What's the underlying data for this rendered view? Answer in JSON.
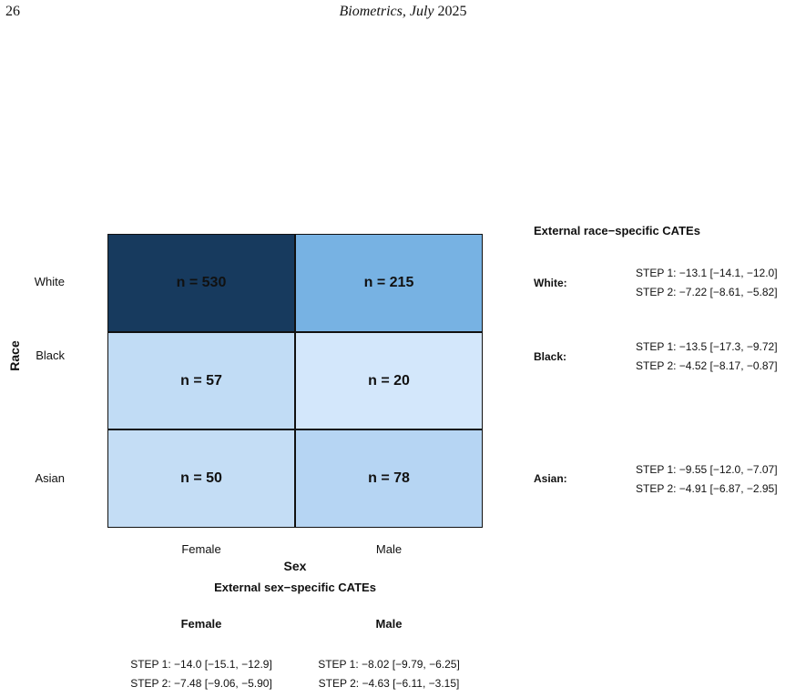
{
  "header": {
    "page_number": "26",
    "journal": "Biometrics, July",
    "year": "2025"
  },
  "chart_data": {
    "type": "heatmap",
    "ylabel": "Race",
    "xlabel": "Sex",
    "rows": [
      "White",
      "Black",
      "Asian"
    ],
    "columns": [
      "Female",
      "Male"
    ],
    "counts": [
      [
        530,
        215
      ],
      [
        57,
        20
      ],
      [
        50,
        78
      ]
    ],
    "cell_labels": [
      [
        "n = 530",
        "n = 215"
      ],
      [
        "n = 57",
        "n = 20"
      ],
      [
        "n = 50",
        "n = 78"
      ]
    ],
    "cell_colors": [
      [
        "#173a5e",
        "#77b2e3"
      ],
      [
        "#c1dcf5",
        "#d3e7fb"
      ],
      [
        "#c4ddf5",
        "#b6d5f3"
      ]
    ]
  },
  "sex_cates": {
    "title": "External sex−specific CATEs",
    "groups": [
      {
        "label": "Female",
        "step1": "STEP 1: −14.0 [−15.1, −12.9]",
        "step2": "STEP 2: −7.48 [−9.06, −5.90]"
      },
      {
        "label": "Male",
        "step1": "STEP 1: −8.02 [−9.79, −6.25]",
        "step2": "STEP 2: −4.63 [−6.11, −3.15]"
      }
    ]
  },
  "race_cates": {
    "title": "External race−specific CATEs",
    "groups": [
      {
        "label": "White:",
        "step1": "STEP 1: −13.1 [−14.1, −12.0]",
        "step2": "STEP 2: −7.22 [−8.61, −5.82]"
      },
      {
        "label": "Black:",
        "step1": "STEP 1: −13.5 [−17.3, −9.72]",
        "step2": "STEP 2: −4.52 [−8.17, −0.87]"
      },
      {
        "label": "Asian:",
        "step1": "STEP 1: −9.55 [−12.0, −7.07]",
        "step2": "STEP 2: −4.91 [−6.87, −2.95]"
      }
    ]
  }
}
